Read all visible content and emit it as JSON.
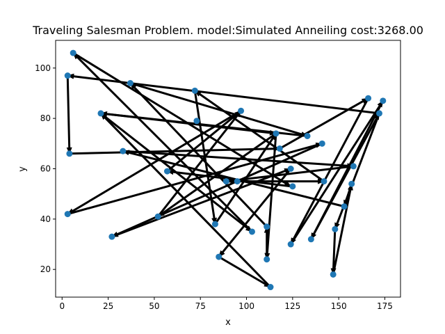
{
  "chart_data": {
    "type": "scatter",
    "title": "Traveling Salesman Problem. model:Simulated Anneiling  cost:3268.00",
    "xlabel": "x",
    "ylabel": "y",
    "xlim": [
      -3.5,
      183.5
    ],
    "ylim": [
      9,
      111
    ],
    "xticks": [
      0,
      25,
      50,
      75,
      100,
      125,
      150,
      175
    ],
    "yticks": [
      20,
      40,
      60,
      80,
      100
    ],
    "grid": false,
    "point_color": "#1f77b4",
    "arrow_color": "#000000",
    "points": [
      {
        "x": 6,
        "y": 106
      },
      {
        "x": 3,
        "y": 97
      },
      {
        "x": 4,
        "y": 66
      },
      {
        "x": 3,
        "y": 42
      },
      {
        "x": 21,
        "y": 82
      },
      {
        "x": 27,
        "y": 33
      },
      {
        "x": 33,
        "y": 67
      },
      {
        "x": 37,
        "y": 94
      },
      {
        "x": 52,
        "y": 41
      },
      {
        "x": 57,
        "y": 59
      },
      {
        "x": 72,
        "y": 91
      },
      {
        "x": 73,
        "y": 79
      },
      {
        "x": 83,
        "y": 38
      },
      {
        "x": 85,
        "y": 25
      },
      {
        "x": 89,
        "y": 55
      },
      {
        "x": 95,
        "y": 55
      },
      {
        "x": 97,
        "y": 83
      },
      {
        "x": 103,
        "y": 35
      },
      {
        "x": 111,
        "y": 24
      },
      {
        "x": 111,
        "y": 37
      },
      {
        "x": 113,
        "y": 13
      },
      {
        "x": 118,
        "y": 68
      },
      {
        "x": 124,
        "y": 30
      },
      {
        "x": 125,
        "y": 53
      },
      {
        "x": 124,
        "y": 60
      },
      {
        "x": 116,
        "y": 74
      },
      {
        "x": 133,
        "y": 73
      },
      {
        "x": 135,
        "y": 32
      },
      {
        "x": 141,
        "y": 70
      },
      {
        "x": 142,
        "y": 55
      },
      {
        "x": 147,
        "y": 18
      },
      {
        "x": 148,
        "y": 36
      },
      {
        "x": 153,
        "y": 45
      },
      {
        "x": 157,
        "y": 54
      },
      {
        "x": 158,
        "y": 61
      },
      {
        "x": 166,
        "y": 88
      },
      {
        "x": 172,
        "y": 82
      },
      {
        "x": 174,
        "y": 87
      }
    ],
    "route": [
      [
        3,
        97
      ],
      [
        4,
        66
      ],
      [
        118,
        68
      ],
      [
        166,
        88
      ],
      [
        124,
        30
      ],
      [
        174,
        87
      ],
      [
        135,
        32
      ],
      [
        172,
        82
      ],
      [
        148,
        36
      ],
      [
        147,
        18
      ],
      [
        157,
        54
      ],
      [
        153,
        45
      ],
      [
        33,
        67
      ],
      [
        158,
        61
      ],
      [
        89,
        55
      ],
      [
        142,
        55
      ],
      [
        72,
        91
      ],
      [
        83,
        38
      ],
      [
        116,
        74
      ],
      [
        111,
        24
      ],
      [
        111,
        37
      ],
      [
        37,
        94
      ],
      [
        133,
        73
      ],
      [
        21,
        82
      ],
      [
        116,
        74
      ],
      [
        52,
        41
      ],
      [
        97,
        83
      ],
      [
        3,
        42
      ],
      [
        141,
        70
      ],
      [
        27,
        33
      ],
      [
        124,
        60
      ],
      [
        85,
        25
      ],
      [
        113,
        13
      ],
      [
        21,
        82
      ],
      [
        103,
        35
      ],
      [
        6,
        106
      ],
      [
        124,
        53
      ],
      [
        57,
        59
      ],
      [
        97,
        83
      ]
    ],
    "return_edge": [
      [
        172,
        82
      ],
      [
        3,
        97
      ]
    ]
  }
}
